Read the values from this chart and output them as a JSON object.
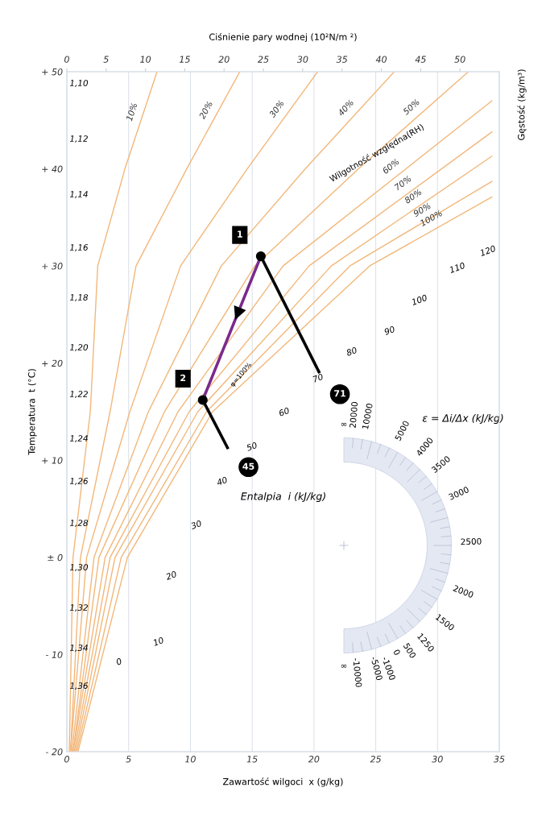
{
  "chart_data": {
    "type": "line",
    "xlabel": "Zawartość wilgoci  x (g/kg)",
    "ylabel": "Temperatura  t (°C)",
    "x2label": "Ciśnienie pary wodnej (10²N/m ²)",
    "xlim": [
      0,
      35
    ],
    "xticks": [
      0,
      5,
      10,
      15,
      20,
      25,
      30,
      35
    ],
    "ylim": [
      -20,
      50
    ],
    "yticks": [
      {
        "value": -20,
        "label": "- 20"
      },
      {
        "value": -10,
        "label": "- 10"
      },
      {
        "value": 0,
        "label": "± 0"
      },
      {
        "value": 10,
        "label": "+ 10"
      },
      {
        "value": 20,
        "label": "+ 20"
      },
      {
        "value": 30,
        "label": "+ 30"
      },
      {
        "value": 40,
        "label": "+ 40"
      },
      {
        "value": 50,
        "label": "+ 50"
      }
    ],
    "x2lim": [
      0,
      55
    ],
    "x2ticks": [
      0,
      5,
      10,
      15,
      20,
      25,
      30,
      35,
      40,
      45,
      50
    ],
    "grid": "x",
    "series": [
      {
        "name": "10%",
        "color": "#f2b77a",
        "x": [
          0.2,
          0.5,
          1.9,
          2.5,
          4.7,
          7.3
        ],
        "values": [
          -20,
          0,
          15,
          30,
          40,
          50
        ]
      },
      {
        "name": "20%",
        "color": "#f2b77a",
        "x": [
          0.3,
          1.1,
          3.5,
          5.6,
          9.7,
          14.0
        ],
        "values": [
          -20,
          0,
          15,
          30,
          40,
          50
        ]
      },
      {
        "name": "30%",
        "color": "#f2b77a",
        "x": [
          0.3,
          1.6,
          5.1,
          9.2,
          14.6,
          20.3
        ],
        "values": [
          -20,
          0,
          15,
          30,
          40,
          50
        ]
      },
      {
        "name": "40%",
        "color": "#f2b77a",
        "x": [
          0.4,
          2.2,
          6.6,
          12.5,
          19.3,
          26.5
        ],
        "values": [
          -20,
          0,
          15,
          30,
          40,
          50
        ]
      },
      {
        "name": "50%",
        "color": "#f2b77a",
        "x": [
          0.5,
          2.6,
          7.9,
          15.2,
          23.6,
          32.5
        ],
        "values": [
          -20,
          0,
          15,
          30,
          40,
          50
        ]
      },
      {
        "name": "60%",
        "color": "#f2b77a",
        "x": [
          0.5,
          3.1,
          9.0,
          17.5,
          34.4
        ],
        "values": [
          -20,
          0,
          15,
          30,
          47.0
        ]
      },
      {
        "name": "70%",
        "color": "#f2b77a",
        "x": [
          0.6,
          3.5,
          9.9,
          19.6,
          34.4
        ],
        "values": [
          -20,
          0,
          15,
          30,
          43.8
        ]
      },
      {
        "name": "80%",
        "color": "#f2b77a",
        "x": [
          0.7,
          3.9,
          10.6,
          21.4,
          34.4
        ],
        "values": [
          -20,
          0,
          15,
          30,
          41.3
        ]
      },
      {
        "name": "90%",
        "color": "#f2b77a",
        "x": [
          0.8,
          4.4,
          11.3,
          22.9,
          34.4
        ],
        "values": [
          -20,
          0,
          15,
          30,
          38.7
        ]
      },
      {
        "name": "100%",
        "color": "#f2b77a",
        "x": [
          0.9,
          4.9,
          11.8,
          24.5,
          34.4
        ],
        "values": [
          -20,
          0,
          15,
          30,
          37.1
        ]
      },
      {
        "color": "#7b2a8c",
        "x": [
          15.7,
          11.0
        ],
        "values": [
          31.0,
          16.2
        ]
      },
      {
        "color": "#000000",
        "x": [
          15.7,
          20.4
        ],
        "values": [
          31.0,
          19.1
        ]
      },
      {
        "color": "#000000",
        "x": [
          11.0,
          13.0
        ],
        "values": [
          16.2,
          11.3
        ]
      },
      {
        "type": "scatter",
        "color": "#000000",
        "marker": "circle",
        "x": [
          15.7,
          11.0
        ],
        "values": [
          31.0,
          16.2
        ]
      }
    ],
    "annotations": [
      {
        "text": "1",
        "x": 14.0,
        "y": 33.2
      },
      {
        "text": "2",
        "x": 9.4,
        "y": 18.4
      },
      {
        "text": "71",
        "x": 22.1,
        "y": 16.8
      },
      {
        "text": "45",
        "x": 14.7,
        "y": 9.3
      },
      {
        "text": "Wilgotność względna(RH)",
        "x": 25.1,
        "y": 41.6
      },
      {
        "text": "φ=100%",
        "x": 14.1,
        "y": 18.8
      },
      "Entalpia  i (kJ/kg)",
      "ε = Δi/Δx (kJ/kg)",
      "0",
      "10",
      "20",
      "30",
      "40",
      "50",
      "60",
      "70",
      "80",
      "90",
      "100",
      "110",
      "120",
      "1,10",
      "1,12",
      "1,14",
      "1,16",
      "1,18",
      "1,20",
      "1,22",
      "1,24",
      "1,26",
      "1,28",
      "1,30",
      "1,32",
      "1,34",
      "1,36",
      "∞",
      "20000",
      "10000",
      "5000",
      "4000",
      "3500",
      "3000",
      "2500",
      "2000",
      "1500",
      "1250",
      "500",
      "0",
      "-1000",
      "-5000",
      "-10000",
      "∞",
      "Gęstość (kg/m³)"
    ]
  }
}
